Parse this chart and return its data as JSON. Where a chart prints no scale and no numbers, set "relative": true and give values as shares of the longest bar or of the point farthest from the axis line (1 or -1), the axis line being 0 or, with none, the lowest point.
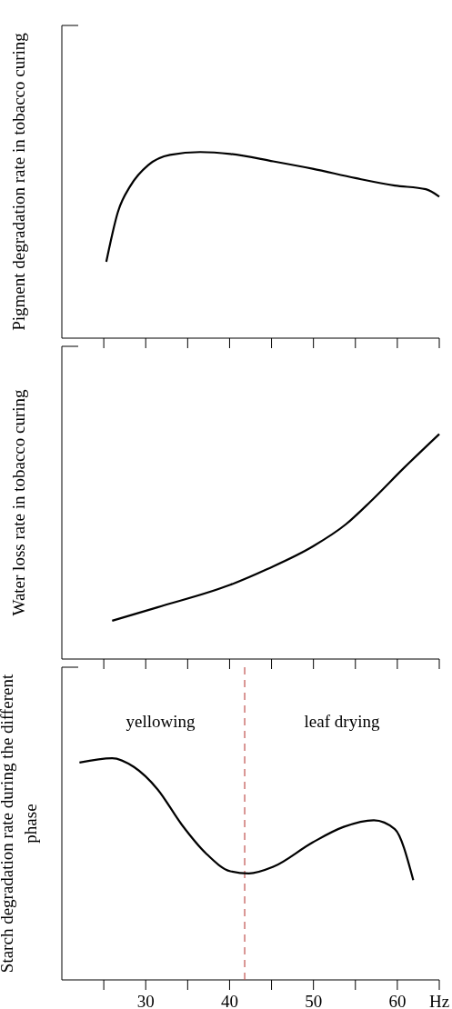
{
  "chart_data": [
    {
      "type": "line",
      "ylabel": "Pigment degradation rate in tobacco curing",
      "relative": true,
      "xlim": [
        20,
        65
      ],
      "xticks": [
        {
          "value": 25,
          "label": null
        },
        {
          "value": 30,
          "label": null
        },
        {
          "value": 35,
          "label": null
        },
        {
          "value": 40,
          "label": null
        },
        {
          "value": 45,
          "label": null
        },
        {
          "value": 50,
          "label": null
        },
        {
          "value": 55,
          "label": null
        },
        {
          "value": 60,
          "label": null
        },
        {
          "value": 65,
          "label": null
        }
      ],
      "tick_labels": false,
      "series": [
        {
          "color": "#000000",
          "x": [
            25.3,
            26.7,
            28.2,
            30.3,
            32.9,
            36.5,
            40.1,
            45.2,
            49.9,
            55,
            59.7,
            63.4,
            65
          ],
          "values": [
            0.41,
            0.68,
            0.82,
            0.93,
            0.985,
            1,
            0.99,
            0.95,
            0.91,
            0.86,
            0.82,
            0.8,
            0.76
          ]
        }
      ]
    },
    {
      "type": "line",
      "ylabel": "Water loss rate in tobacco curing",
      "relative": true,
      "xlim": [
        20,
        65
      ],
      "xticks": [
        {
          "value": 25,
          "label": null
        },
        {
          "value": 30,
          "label": null
        },
        {
          "value": 35,
          "label": null
        },
        {
          "value": 40,
          "label": null
        },
        {
          "value": 45,
          "label": null
        },
        {
          "value": 50,
          "label": null
        },
        {
          "value": 55,
          "label": null
        },
        {
          "value": 60,
          "label": null
        },
        {
          "value": 65,
          "label": null
        }
      ],
      "tick_labels": false,
      "series": [
        {
          "color": "#000000",
          "x": [
            26,
            31.4,
            40.1,
            44.5,
            49.9,
            53.9,
            56.8,
            60.8,
            65
          ],
          "values": [
            0.17,
            0.23,
            0.33,
            0.4,
            0.5,
            0.6,
            0.7,
            0.85,
            1
          ]
        }
      ]
    },
    {
      "type": "line",
      "ylabel": "Starch degradation rate during the different phase",
      "xlabel": "Hz",
      "relative": true,
      "xlim": [
        20,
        65
      ],
      "xticks": [
        {
          "value": 25,
          "label": null
        },
        30,
        {
          "value": 35,
          "label": null
        },
        40,
        {
          "value": 45,
          "label": null
        },
        50,
        {
          "value": 55,
          "label": null
        },
        60,
        {
          "value": 65,
          "label": null
        }
      ],
      "tick_labels": "x",
      "ref_lines": [
        {
          "axis": "x",
          "value": 41.8,
          "color": "#c0504d",
          "line_style": "dashed"
        }
      ],
      "annotations": [
        "yellowing",
        "leaf drying"
      ],
      "series": [
        {
          "color": "#000000",
          "x": [
            22.1,
            26,
            28.6,
            31.4,
            34.3,
            37.2,
            40.1,
            42.3,
            45.2,
            49.9,
            53.6,
            57.2,
            59.7,
            61.9
          ],
          "values": [
            0.98,
            1,
            0.96,
            0.86,
            0.7,
            0.57,
            0.49,
            0.48,
            0.51,
            0.62,
            0.69,
            0.72,
            0.68,
            0.45
          ]
        }
      ]
    }
  ]
}
